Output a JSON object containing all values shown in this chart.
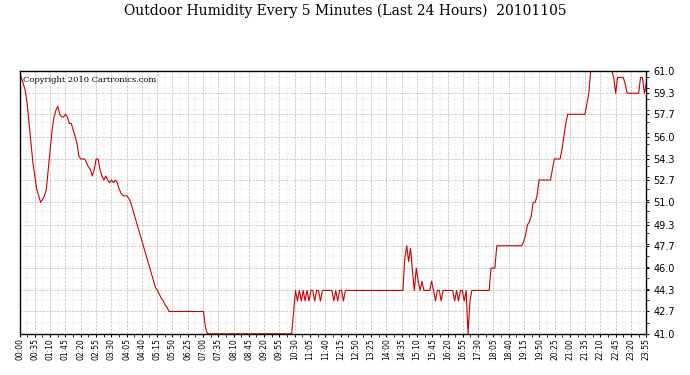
{
  "title": "Outdoor Humidity Every 5 Minutes (Last 24 Hours)  20101105",
  "copyright_text": "Copyright 2010 Cartronics.com",
  "line_color": "#cc0000",
  "background_color": "#ffffff",
  "plot_bg_color": "#ffffff",
  "grid_color": "#bbbbbb",
  "ylim": [
    41.0,
    61.0
  ],
  "yticks": [
    41.0,
    42.7,
    44.3,
    46.0,
    47.7,
    49.3,
    51.0,
    52.7,
    54.3,
    56.0,
    57.7,
    59.3,
    61.0
  ],
  "x_labels": [
    "00:00",
    "00:35",
    "01:10",
    "01:45",
    "02:20",
    "02:55",
    "03:30",
    "04:05",
    "04:40",
    "05:15",
    "05:50",
    "06:25",
    "07:00",
    "07:35",
    "08:10",
    "08:45",
    "09:20",
    "09:55",
    "10:30",
    "11:05",
    "11:40",
    "12:15",
    "12:50",
    "13:25",
    "14:00",
    "14:35",
    "15:10",
    "15:45",
    "16:20",
    "16:55",
    "17:30",
    "18:05",
    "18:40",
    "19:15",
    "19:50",
    "20:25",
    "21:00",
    "21:35",
    "22:10",
    "22:45",
    "23:20",
    "23:55"
  ],
  "humidity_values": [
    61.0,
    60.5,
    60.0,
    59.5,
    58.5,
    57.0,
    55.5,
    54.0,
    53.0,
    52.0,
    51.5,
    51.0,
    51.2,
    51.5,
    52.0,
    53.5,
    55.0,
    56.5,
    57.5,
    58.0,
    58.3,
    57.7,
    57.5,
    57.5,
    57.7,
    57.5,
    57.0,
    57.0,
    56.5,
    56.0,
    55.5,
    54.5,
    54.3,
    54.3,
    54.3,
    54.0,
    53.7,
    53.5,
    53.0,
    53.5,
    54.3,
    54.3,
    53.5,
    53.0,
    52.7,
    53.0,
    52.7,
    52.5,
    52.7,
    52.5,
    52.7,
    52.5,
    52.0,
    51.7,
    51.5,
    51.5,
    51.5,
    51.3,
    51.0,
    50.5,
    50.0,
    49.5,
    49.0,
    48.5,
    48.0,
    47.5,
    47.0,
    46.5,
    46.0,
    45.5,
    45.0,
    44.5,
    44.3,
    44.0,
    43.7,
    43.5,
    43.2,
    43.0,
    42.7,
    42.7,
    42.7,
    42.7,
    42.7,
    42.7,
    42.7,
    42.7,
    42.7,
    42.7,
    42.7,
    42.7,
    42.7,
    42.7,
    42.7,
    42.7,
    42.7,
    42.7,
    42.7,
    41.5,
    41.0,
    41.0,
    41.0,
    41.0,
    41.0,
    41.0,
    41.0,
    41.0,
    41.0,
    41.0,
    41.0,
    41.0,
    41.0,
    41.0,
    41.0,
    41.0,
    41.0,
    41.0,
    41.0,
    41.0,
    41.0,
    41.0,
    41.0,
    41.0,
    41.0,
    41.0,
    41.0,
    41.0,
    41.0,
    41.0,
    41.0,
    41.0,
    41.0,
    41.0,
    41.0,
    41.0,
    41.0,
    41.0,
    41.0,
    41.0,
    41.0,
    41.0,
    41.0,
    41.0,
    41.0,
    42.7,
    44.3,
    43.5,
    44.3,
    43.5,
    44.3,
    43.5,
    44.3,
    43.5,
    44.3,
    44.3,
    43.5,
    44.3,
    44.3,
    43.5,
    44.3,
    44.3,
    44.3,
    44.3,
    44.3,
    44.3,
    43.5,
    44.3,
    43.5,
    44.3,
    44.3,
    43.5,
    44.3,
    44.3,
    44.3,
    44.3,
    44.3,
    44.3,
    44.3,
    44.3,
    44.3,
    44.3,
    44.3,
    44.3,
    44.3,
    44.3,
    44.3,
    44.3,
    44.3,
    44.3,
    44.3,
    44.3,
    44.3,
    44.3,
    44.3,
    44.3,
    44.3,
    44.3,
    44.3,
    44.3,
    44.3,
    44.3,
    44.3,
    46.7,
    47.7,
    46.5,
    47.5,
    45.8,
    44.3,
    46.0,
    45.0,
    44.3,
    45.0,
    44.3,
    44.3,
    44.3,
    44.3,
    45.0,
    44.3,
    43.5,
    44.3,
    44.3,
    43.5,
    44.3,
    44.3,
    44.3,
    44.3,
    44.3,
    44.3,
    43.5,
    44.3,
    43.5,
    44.3,
    44.3,
    43.5,
    44.3,
    41.0,
    43.5,
    44.3,
    44.3,
    44.3,
    44.3,
    44.3,
    44.3,
    44.3,
    44.3,
    44.3,
    44.3,
    46.0,
    46.0,
    46.0,
    47.7,
    47.7,
    47.7,
    47.7,
    47.7,
    47.7,
    47.7,
    47.7,
    47.7,
    47.7,
    47.7,
    47.7,
    47.7,
    47.7,
    48.0,
    48.5,
    49.3,
    49.5,
    50.0,
    51.0,
    51.0,
    51.5,
    52.7,
    52.7,
    52.7,
    52.7,
    52.7,
    52.7,
    52.7,
    53.5,
    54.3,
    54.3,
    54.3,
    54.3,
    55.0,
    56.0,
    57.0,
    57.7,
    57.7,
    57.7,
    57.7,
    57.7,
    57.7,
    57.7,
    57.7,
    57.7,
    57.7,
    58.5,
    59.3,
    61.0,
    61.0,
    61.0,
    61.0,
    61.0,
    61.0,
    61.0,
    61.0,
    61.0,
    61.0,
    61.0,
    61.0,
    60.5,
    59.3,
    60.5,
    60.5,
    60.5,
    60.5,
    60.0,
    59.3,
    59.3,
    59.3,
    59.3,
    59.3,
    59.3,
    59.3,
    60.5,
    60.5,
    59.3,
    60.0
  ]
}
